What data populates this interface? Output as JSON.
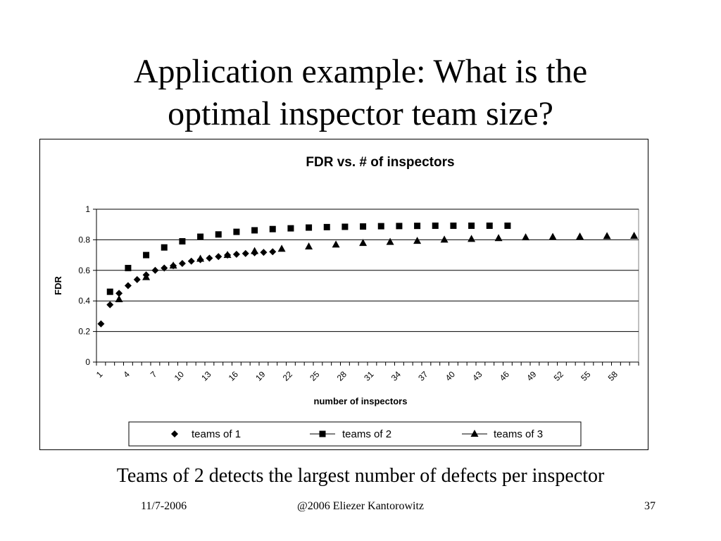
{
  "slide": {
    "title_lines": [
      "Application example: What is the",
      "optimal inspector team size?"
    ],
    "caption": "Teams of 2 detects the largest number of defects per inspector",
    "footer": {
      "date": "11/7-2006",
      "copyright": "@2006 Eliezer Kantorowitz",
      "page": "37"
    }
  },
  "chart_data": {
    "type": "scatter",
    "title": "FDR vs. # of inspectors",
    "xlabel": "number of inspectors",
    "ylabel": "FDR",
    "xlim": [
      1,
      60
    ],
    "ylim": [
      0,
      1
    ],
    "x_tick_labels": [
      1,
      4,
      7,
      10,
      13,
      16,
      19,
      22,
      25,
      28,
      31,
      34,
      37,
      40,
      43,
      46,
      49,
      52,
      55,
      58
    ],
    "y_ticks": [
      0,
      0.2,
      0.4,
      0.6,
      0.8,
      1
    ],
    "y_tick_labels": [
      "0",
      "0.2",
      "0.4",
      "0.6",
      "0.8",
      "1"
    ],
    "grid": "horizontal",
    "legend_position": "bottom",
    "series": [
      {
        "name": "teams of 1",
        "marker": "diamond",
        "color": "#000000",
        "x": [
          1,
          2,
          3,
          4,
          5,
          6,
          7,
          8,
          9,
          10,
          11,
          12,
          13,
          14,
          15,
          16,
          17,
          18,
          19,
          20
        ],
        "y": [
          0.25,
          0.375,
          0.45,
          0.5,
          0.54,
          0.57,
          0.6,
          0.615,
          0.63,
          0.645,
          0.66,
          0.67,
          0.68,
          0.69,
          0.7,
          0.705,
          0.71,
          0.715,
          0.718,
          0.722
        ]
      },
      {
        "name": "teams of 2",
        "marker": "square",
        "color": "#000000",
        "x": [
          2,
          4,
          6,
          8,
          10,
          12,
          14,
          16,
          18,
          20,
          22,
          24,
          26,
          28,
          30,
          32,
          34,
          36,
          38,
          40,
          42,
          44,
          46
        ],
        "y": [
          0.46,
          0.615,
          0.7,
          0.75,
          0.79,
          0.82,
          0.835,
          0.852,
          0.862,
          0.87,
          0.875,
          0.88,
          0.883,
          0.885,
          0.887,
          0.889,
          0.89,
          0.891,
          0.892,
          0.892,
          0.892,
          0.892,
          0.892
        ]
      },
      {
        "name": "teams of 3",
        "marker": "triangle",
        "color": "#000000",
        "x": [
          3,
          6,
          9,
          12,
          15,
          18,
          21,
          24,
          27,
          30,
          33,
          36,
          39,
          42,
          45,
          48,
          51,
          54,
          57,
          60
        ],
        "y": [
          0.41,
          0.555,
          0.63,
          0.675,
          0.7,
          0.725,
          0.74,
          0.755,
          0.768,
          0.778,
          0.785,
          0.792,
          0.8,
          0.805,
          0.81,
          0.815,
          0.818,
          0.82,
          0.823,
          0.825
        ]
      }
    ]
  }
}
